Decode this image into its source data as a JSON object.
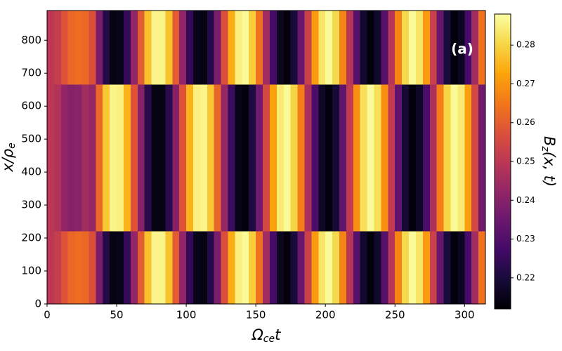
{
  "chart_data": {
    "type": "heatmap",
    "xlabel": {
      "base": "Ω",
      "sub": "ce",
      "tail": "t"
    },
    "ylabel": {
      "base": "x/ρ",
      "sub": "e"
    },
    "colorbar_label": {
      "base": "B",
      "sub": "z",
      "tail": "(x, t)"
    },
    "annotation": "(a)",
    "colormap": "inferno",
    "x_edges": [
      0,
      5,
      10,
      15,
      20,
      25,
      30,
      35,
      40,
      45,
      50,
      55,
      60,
      65,
      70,
      75,
      80,
      85,
      90,
      95,
      100,
      105,
      110,
      115,
      120,
      125,
      130,
      135,
      140,
      145,
      150,
      155,
      160,
      165,
      170,
      175,
      180,
      185,
      190,
      195,
      200,
      205,
      210,
      215,
      220,
      225,
      230,
      235,
      240,
      245,
      250,
      255,
      260,
      265,
      270,
      275,
      280,
      285,
      290,
      295,
      300,
      305,
      310,
      315
    ],
    "y_edges": [
      0,
      220,
      665,
      890
    ],
    "z": [
      [
        0.25,
        0.252,
        0.258,
        0.262,
        0.263,
        0.262,
        0.257,
        0.238,
        0.222,
        0.214,
        0.215,
        0.225,
        0.242,
        0.26,
        0.277,
        0.286,
        0.286,
        0.277,
        0.26,
        0.242,
        0.225,
        0.215,
        0.214,
        0.222,
        0.238,
        0.257,
        0.274,
        0.285,
        0.287,
        0.279,
        0.264,
        0.245,
        0.228,
        0.216,
        0.213,
        0.22,
        0.234,
        0.253,
        0.271,
        0.283,
        0.287,
        0.281,
        0.267,
        0.249,
        0.231,
        0.218,
        0.213,
        0.218,
        0.231,
        0.249,
        0.267,
        0.281,
        0.287,
        0.283,
        0.271,
        0.253,
        0.234,
        0.22,
        0.213,
        0.216,
        0.228,
        0.245,
        0.264
      ],
      [
        0.25,
        0.248,
        0.242,
        0.24,
        0.241,
        0.245,
        0.243,
        0.262,
        0.278,
        0.286,
        0.285,
        0.275,
        0.258,
        0.24,
        0.223,
        0.214,
        0.214,
        0.223,
        0.24,
        0.258,
        0.275,
        0.285,
        0.286,
        0.278,
        0.262,
        0.243,
        0.226,
        0.215,
        0.213,
        0.221,
        0.236,
        0.255,
        0.272,
        0.284,
        0.287,
        0.28,
        0.266,
        0.247,
        0.229,
        0.217,
        0.213,
        0.219,
        0.233,
        0.251,
        0.269,
        0.282,
        0.287,
        0.282,
        0.269,
        0.251,
        0.233,
        0.219,
        0.213,
        0.217,
        0.229,
        0.247,
        0.266,
        0.28,
        0.287,
        0.284,
        0.272,
        0.255,
        0.236
      ],
      [
        0.25,
        0.252,
        0.258,
        0.262,
        0.263,
        0.262,
        0.257,
        0.238,
        0.222,
        0.214,
        0.215,
        0.225,
        0.242,
        0.26,
        0.277,
        0.286,
        0.286,
        0.277,
        0.26,
        0.242,
        0.225,
        0.215,
        0.214,
        0.222,
        0.238,
        0.257,
        0.274,
        0.285,
        0.287,
        0.279,
        0.264,
        0.245,
        0.228,
        0.216,
        0.213,
        0.22,
        0.234,
        0.253,
        0.271,
        0.283,
        0.287,
        0.281,
        0.267,
        0.249,
        0.231,
        0.218,
        0.213,
        0.218,
        0.231,
        0.249,
        0.267,
        0.281,
        0.287,
        0.283,
        0.271,
        0.253,
        0.234,
        0.22,
        0.213,
        0.216,
        0.228,
        0.245,
        0.264
      ]
    ],
    "xlim": [
      0,
      315
    ],
    "ylim": [
      0,
      890
    ],
    "xticks": [
      0,
      50,
      100,
      150,
      200,
      250,
      300
    ],
    "yticks": [
      0,
      100,
      200,
      300,
      400,
      500,
      600,
      700,
      800
    ],
    "clim": [
      0.212,
      0.288
    ],
    "cticks": [
      0.22,
      0.23,
      0.24,
      0.25,
      0.26,
      0.27,
      0.28
    ]
  }
}
